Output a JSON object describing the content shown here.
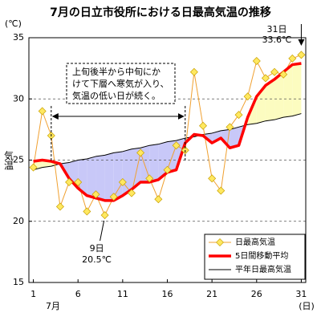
{
  "chart_data": {
    "type": "line",
    "title": "7月の日立市役所における日最高気温の推移",
    "y_unit": "(℃)",
    "ylabel": "気温",
    "x_month": "7月",
    "x_unit": "(日)",
    "x": [
      1,
      2,
      3,
      4,
      5,
      6,
      7,
      8,
      9,
      10,
      11,
      12,
      13,
      14,
      15,
      16,
      17,
      18,
      19,
      20,
      21,
      22,
      23,
      24,
      25,
      26,
      27,
      28,
      29,
      30,
      31
    ],
    "xlim": [
      0.5,
      31.5
    ],
    "xticks": [
      1,
      6,
      11,
      16,
      21,
      26,
      31
    ],
    "ylim": [
      15,
      35
    ],
    "yticks": [
      15,
      20,
      25,
      30,
      35
    ],
    "grid": true,
    "legend": "lower right",
    "series": [
      {
        "name": "日最高気温",
        "color": "#f0a030",
        "marker_color": "#ffe860",
        "values": [
          24.4,
          29.0,
          27.0,
          21.2,
          23.2,
          23.2,
          20.8,
          22.2,
          20.5,
          22.0,
          23.2,
          22.3,
          25.6,
          23.5,
          21.8,
          24.2,
          26.2,
          25.8,
          32.2,
          27.8,
          23.5,
          22.5,
          27.7,
          28.7,
          30.2,
          33.1,
          31.7,
          32.2,
          32.0,
          33.3,
          33.6
        ]
      },
      {
        "name": "5日間移動平均",
        "color": "#ff0000",
        "values": [
          24.9,
          25.0,
          24.9,
          24.7,
          23.5,
          22.7,
          22.1,
          21.9,
          21.7,
          21.7,
          22.1,
          22.6,
          23.2,
          23.2,
          23.4,
          24.0,
          24.2,
          26.4,
          27.1,
          27.0,
          26.4,
          26.8,
          26.0,
          26.2,
          28.5,
          30.2,
          31.1,
          31.6,
          32.2,
          32.8,
          32.9
        ]
      },
      {
        "name": "平年日最高気温",
        "color": "#000000",
        "values": [
          24.2,
          24.4,
          24.5,
          24.7,
          24.8,
          25.0,
          25.1,
          25.3,
          25.4,
          25.6,
          25.7,
          25.9,
          26.0,
          26.2,
          26.3,
          26.5,
          26.6,
          26.8,
          26.9,
          27.1,
          27.2,
          27.4,
          27.5,
          27.7,
          27.9,
          28.0,
          28.2,
          28.3,
          28.5,
          28.6,
          28.8
        ]
      }
    ],
    "fill_below_color": "#c8c8f8",
    "fill_above_color": "#fcfcc0",
    "annotations": {
      "max_day": "31日",
      "max_value": "33.6℃",
      "min_day": "9日",
      "min_value": "20.5℃",
      "note": [
        "上旬後半から中旬にか",
        "けて下層へ寒気が入り、",
        "気温の低い日が続く。"
      ]
    }
  }
}
